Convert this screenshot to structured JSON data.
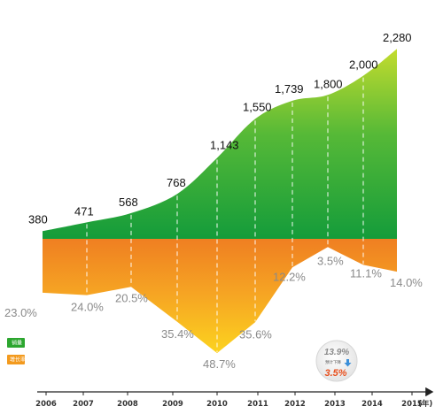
{
  "chart_data": {
    "type": "area",
    "unit_label": "(年)",
    "categories": [
      "2006",
      "2007",
      "2008",
      "2009",
      "2010",
      "2011",
      "2012",
      "2013",
      "2014",
      "2015"
    ],
    "series": [
      {
        "name": "销量",
        "color": "#2ca62f",
        "values": [
          380,
          471,
          568,
          768,
          1143,
          1550,
          1739,
          1800,
          2000,
          2280
        ],
        "value_labels": [
          "380",
          "471",
          "568",
          "768",
          "1,143",
          "1,550",
          "1,739",
          "1,800",
          "2,000",
          "2,280"
        ]
      },
      {
        "name": "增长率",
        "color": "#f39a1e",
        "values": [
          23.0,
          24.0,
          20.5,
          35.4,
          48.7,
          35.6,
          12.2,
          3.5,
          11.1,
          14.0
        ],
        "value_labels": [
          "23.0%",
          "24.0%",
          "20.5%",
          "35.4%",
          "48.7%",
          "35.6%",
          "12.2%",
          "3.5%",
          "11.1%",
          "14.0%"
        ]
      }
    ],
    "annotation": {
      "top": "13.9%",
      "middle": "预计下降",
      "bottom": "3.5%",
      "arrow_icon": "down-arrow-icon"
    },
    "legend_placement": "left",
    "grid": false
  }
}
